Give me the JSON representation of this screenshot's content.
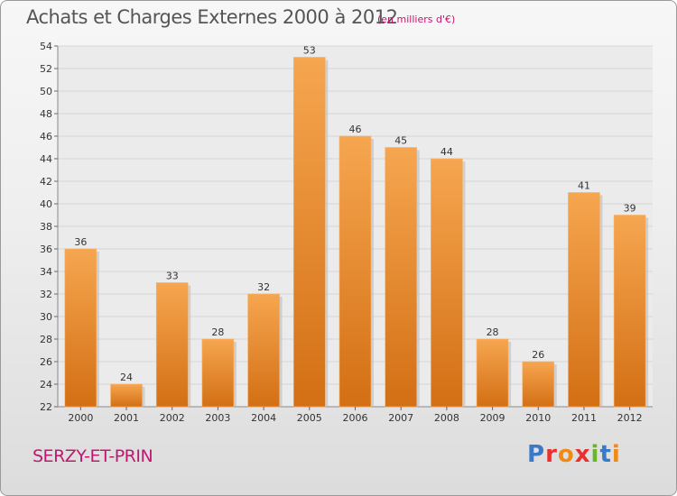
{
  "header": {
    "title": "Achats et Charges Externes 2000 à 2012",
    "subtitle": "(en milliers d'€)"
  },
  "footer": {
    "commune": "SERZY-ET-PRIN",
    "logo_letters": [
      {
        "char": "P",
        "color": "#3a79c8"
      },
      {
        "char": "r",
        "color": "#e8312f"
      },
      {
        "char": "o",
        "color": "#f08a14"
      },
      {
        "char": "x",
        "color": "#e8312f"
      },
      {
        "char": "i",
        "color": "#69b52c"
      },
      {
        "char": "t",
        "color": "#3a79c8"
      },
      {
        "char": "i",
        "color": "#f08a14"
      }
    ]
  },
  "colors": {
    "bar_top": "#f6a650",
    "bar_bottom": "#d36f14",
    "accent": "#c01770"
  },
  "chart_data": {
    "type": "bar",
    "title": "Achats et Charges Externes 2000 à 2012",
    "subtitle": "(en milliers d'€)",
    "categories": [
      "2000",
      "2001",
      "2002",
      "2003",
      "2004",
      "2005",
      "2006",
      "2007",
      "2008",
      "2009",
      "2010",
      "2011",
      "2012"
    ],
    "values": [
      36,
      24,
      33,
      28,
      32,
      53,
      46,
      45,
      44,
      28,
      26,
      41,
      39
    ],
    "ylim": [
      22,
      54
    ],
    "yticks": [
      22,
      24,
      26,
      28,
      30,
      32,
      34,
      36,
      38,
      40,
      42,
      44,
      46,
      48,
      50,
      52,
      54
    ],
    "grid": true,
    "xlabel": "",
    "ylabel": ""
  }
}
